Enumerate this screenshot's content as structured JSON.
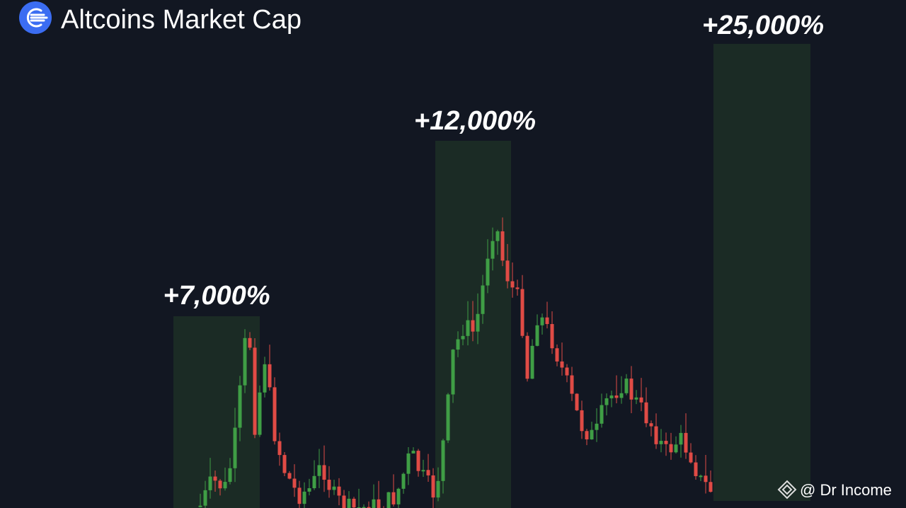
{
  "header": {
    "title": "Altcoins Market Cap"
  },
  "annotations": [
    "+7,000%",
    "+12,000%",
    "+25,000%"
  ],
  "watermark": "@ Dr Income"
}
